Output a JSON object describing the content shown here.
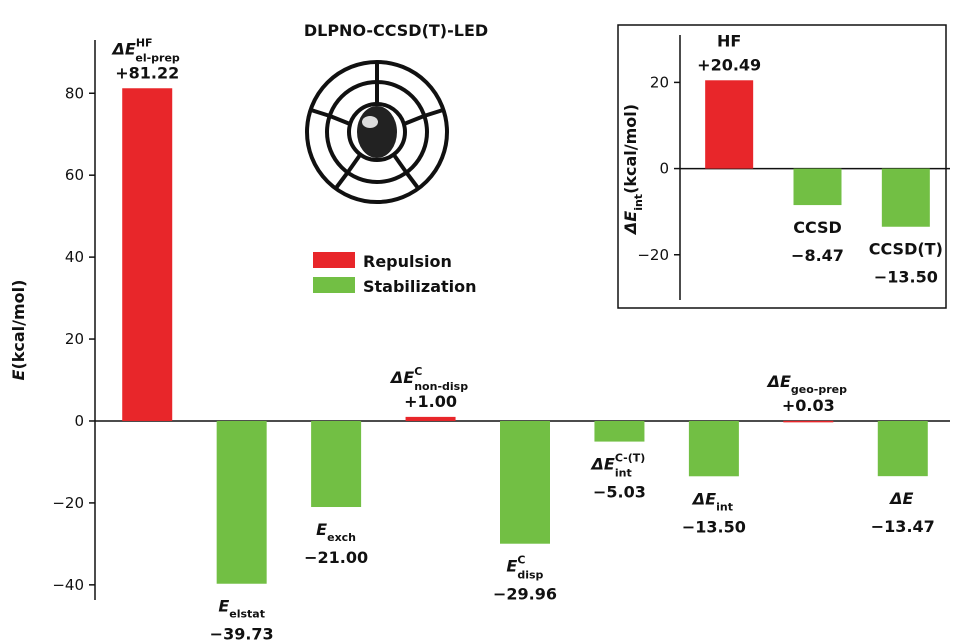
{
  "chart_data": [
    {
      "type": "bar",
      "title": "DLPNO-CCSD(T)-LED",
      "ylabel": {
        "symbol": "E",
        "unit": "(kcal/mol)"
      },
      "categories": [
        {
          "base": "ΔE",
          "sup": "HF",
          "sub": "el-prep"
        },
        {
          "base": "E",
          "sub": "elstat"
        },
        {
          "base": "E",
          "sub": "exch"
        },
        {
          "base": "ΔE",
          "sup": "C",
          "sub": "non-disp"
        },
        {
          "base": "E",
          "sup": "C",
          "sub": "disp"
        },
        {
          "base": "ΔE",
          "sup": "C-(T)",
          "sub": "int"
        },
        {
          "base": "ΔE",
          "sub": "int"
        },
        {
          "base": "ΔE",
          "sub": "geo-prep"
        },
        {
          "base": "ΔE"
        }
      ],
      "values": [
        81.22,
        -39.73,
        -21.0,
        1.0,
        -29.96,
        -5.03,
        -13.5,
        0.03,
        -13.47
      ],
      "value_labels": [
        "+81.22",
        "−39.73",
        "−21.00",
        "+1.00",
        "−29.96",
        "−5.03",
        "−13.50",
        "+0.03",
        "−13.47"
      ],
      "bar_colors": [
        "#e8262a",
        "#72bf44",
        "#72bf44",
        "#e8262a",
        "#72bf44",
        "#72bf44",
        "#72bf44",
        "#e8262a",
        "#72bf44"
      ],
      "legend": [
        {
          "name": "Repulsion",
          "color": "#e8262a"
        },
        {
          "name": "Stabilization",
          "color": "#72bf44"
        }
      ],
      "ylim": [
        -43.7,
        93
      ],
      "yticks": [
        {
          "value": -40,
          "label": "−40"
        },
        {
          "value": -20,
          "label": "−20"
        },
        0,
        20,
        40,
        60,
        80
      ]
    },
    {
      "type": "bar",
      "ylabel": {
        "symbol": "ΔE",
        "sub": "int",
        "unit": "(kcal/mol)"
      },
      "categories": [
        "HF",
        "CCSD",
        "CCSD(T)"
      ],
      "values": [
        20.49,
        -8.47,
        -13.5
      ],
      "value_labels": [
        "+20.49",
        "−8.47",
        "−13.50"
      ],
      "bar_colors": [
        "#e8262a",
        "#72bf44",
        "#72bf44"
      ],
      "ylim": [
        -30.5,
        31
      ],
      "yticks": [
        {
          "value": -20,
          "label": "−20"
        },
        0,
        20
      ]
    }
  ]
}
